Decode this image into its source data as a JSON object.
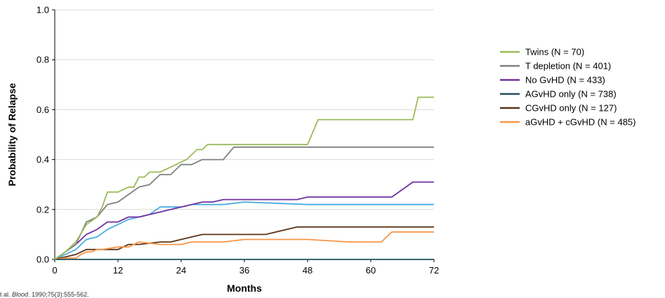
{
  "chart_data": {
    "type": "line",
    "step": true,
    "xlabel": "Months",
    "ylabel": "Probability of Relapse",
    "xlim": [
      0,
      72
    ],
    "ylim": [
      0,
      1.0
    ],
    "xticks": [
      0,
      12,
      24,
      36,
      48,
      60,
      72
    ],
    "yticks": [
      0.0,
      0.2,
      0.4,
      0.6,
      0.8,
      1.0
    ],
    "ytick_labels": [
      "0.0",
      "0.2",
      "0.4",
      "0.6",
      "0.8",
      "1.0"
    ],
    "grid": "horizontal",
    "legend_position": "right",
    "source": {
      "prefix": "t al. ",
      "journal": "Blood",
      "suffix": ". 1990;75(3):555-562."
    },
    "series": [
      {
        "name": "Twins (N = 70)",
        "color": "#9BBB59",
        "x": [
          0,
          2,
          4,
          6,
          8,
          9,
          10,
          12,
          14,
          15,
          16,
          17,
          18,
          20,
          23,
          25,
          27,
          28,
          29,
          48,
          50,
          68,
          69,
          72
        ],
        "y": [
          0,
          0.03,
          0.07,
          0.14,
          0.17,
          0.21,
          0.27,
          0.27,
          0.29,
          0.29,
          0.33,
          0.33,
          0.35,
          0.35,
          0.38,
          0.4,
          0.44,
          0.44,
          0.46,
          0.46,
          0.56,
          0.56,
          0.65,
          0.65
        ]
      },
      {
        "name": "T depletion (N = 401)",
        "color": "#808080",
        "x": [
          0,
          2,
          4,
          6,
          8,
          10,
          12,
          14,
          16,
          18,
          20,
          22,
          24,
          26,
          28,
          32,
          34,
          72
        ],
        "y": [
          0,
          0.03,
          0.06,
          0.15,
          0.17,
          0.22,
          0.23,
          0.26,
          0.29,
          0.3,
          0.34,
          0.34,
          0.38,
          0.38,
          0.4,
          0.4,
          0.45,
          0.45
        ]
      },
      {
        "name": "No GvHD (N = 433)",
        "color": "#7030A0",
        "x": [
          0,
          2,
          4,
          6,
          8,
          10,
          12,
          14,
          16,
          18,
          20,
          22,
          24,
          26,
          28,
          30,
          32,
          34,
          36,
          38,
          40,
          42,
          44,
          46,
          48,
          52,
          56,
          60,
          64,
          68,
          72
        ],
        "y": [
          0,
          0.03,
          0.06,
          0.1,
          0.12,
          0.15,
          0.15,
          0.17,
          0.17,
          0.18,
          0.19,
          0.2,
          0.21,
          0.22,
          0.23,
          0.23,
          0.24,
          0.24,
          0.24,
          0.24,
          0.24,
          0.24,
          0.24,
          0.24,
          0.25,
          0.25,
          0.25,
          0.25,
          0.25,
          0.31,
          0.31
        ]
      },
      {
        "name": "AGvHD only (N = 738)",
        "color": "#1F4E5F",
        "x": [
          0,
          72
        ],
        "y": [
          0,
          0
        ]
      },
      {
        "name": "CGvHD only (N = 127)",
        "color": "#5C3317",
        "x": [
          0,
          4,
          6,
          8,
          10,
          12,
          14,
          16,
          20,
          22,
          24,
          28,
          32,
          36,
          40,
          46,
          48,
          72
        ],
        "y": [
          0,
          0.02,
          0.04,
          0.04,
          0.04,
          0.04,
          0.06,
          0.06,
          0.07,
          0.07,
          0.08,
          0.1,
          0.1,
          0.1,
          0.1,
          0.13,
          0.13,
          0.13
        ]
      },
      {
        "name": "aGvHD + cGvHD (N = 485)",
        "color": "#F79646",
        "x": [
          0,
          2,
          4,
          5,
          6,
          7,
          8,
          9,
          12,
          14,
          16,
          20,
          24,
          26,
          28,
          32,
          36,
          42,
          48,
          56,
          62,
          64,
          68,
          72
        ],
        "y": [
          0,
          0.005,
          0.005,
          0.02,
          0.03,
          0.03,
          0.04,
          0.04,
          0.05,
          0.05,
          0.07,
          0.06,
          0.06,
          0.07,
          0.07,
          0.07,
          0.08,
          0.08,
          0.08,
          0.07,
          0.07,
          0.11,
          0.11,
          0.11
        ]
      },
      {
        "name": "_hidden_light_blue",
        "legend": false,
        "color": "#4AACE0",
        "x": [
          0,
          2,
          4,
          6,
          8,
          10,
          12,
          14,
          16,
          18,
          20,
          22,
          24,
          26,
          28,
          32,
          36,
          48,
          60,
          72
        ],
        "y": [
          0,
          0.02,
          0.04,
          0.08,
          0.09,
          0.12,
          0.14,
          0.16,
          0.17,
          0.18,
          0.21,
          0.21,
          0.21,
          0.22,
          0.22,
          0.22,
          0.23,
          0.22,
          0.22,
          0.22
        ]
      }
    ]
  }
}
